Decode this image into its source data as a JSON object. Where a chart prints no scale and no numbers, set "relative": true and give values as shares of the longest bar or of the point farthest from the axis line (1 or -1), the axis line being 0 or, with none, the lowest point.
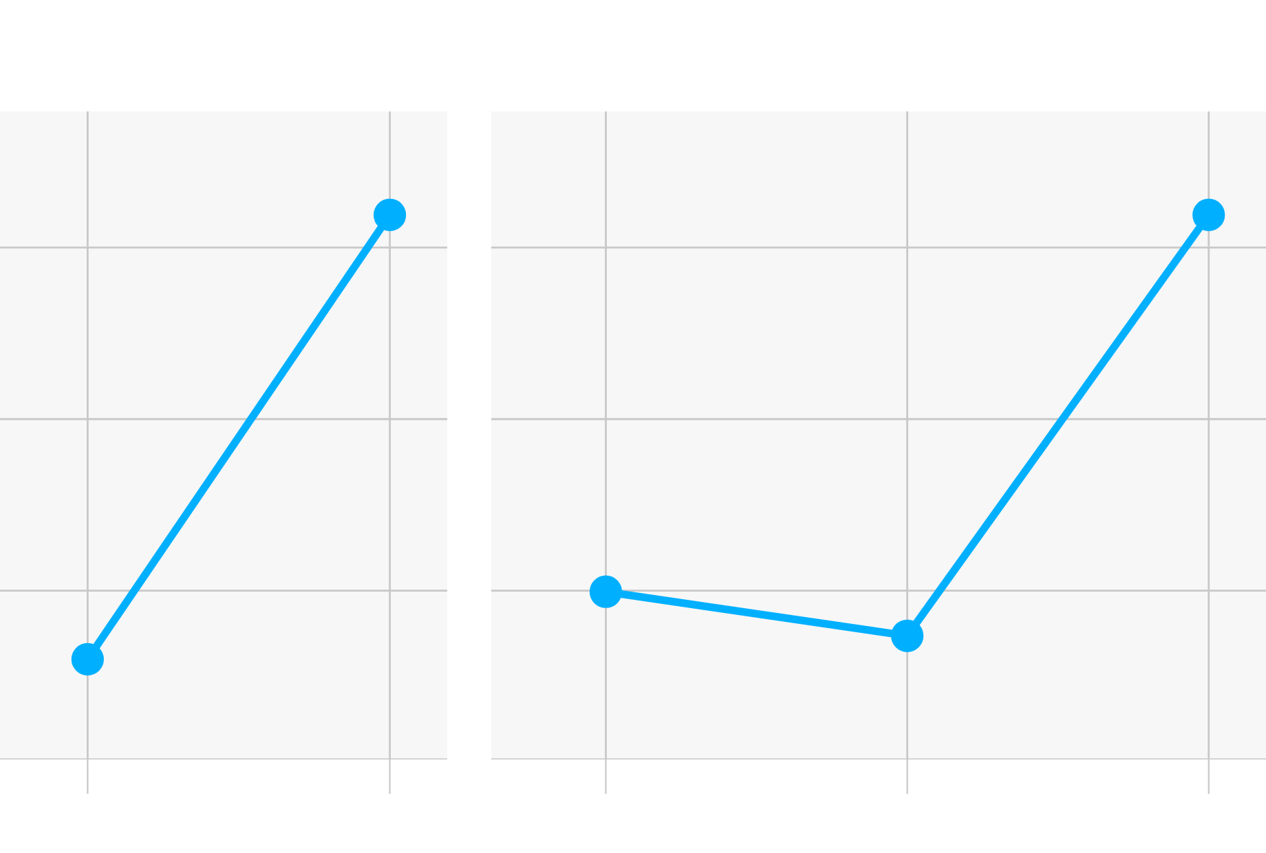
{
  "chart_data": [
    {
      "type": "line",
      "relative": true,
      "categories": [
        null,
        null
      ],
      "series": [
        {
          "color": "#00b0ff",
          "values": [
            0.184,
            1
          ]
        }
      ],
      "marker": "circle",
      "line_style": "solid",
      "grid": true,
      "tick_labels": false,
      "legend": false
    },
    {
      "type": "line",
      "relative": true,
      "categories": [
        null,
        null,
        null
      ],
      "series": [
        {
          "color": "#00b0ff",
          "values": [
            0.308,
            0.227,
            1
          ]
        }
      ],
      "marker": "circle",
      "line_style": "solid",
      "grid": true,
      "tick_labels": false,
      "legend": false
    }
  ]
}
